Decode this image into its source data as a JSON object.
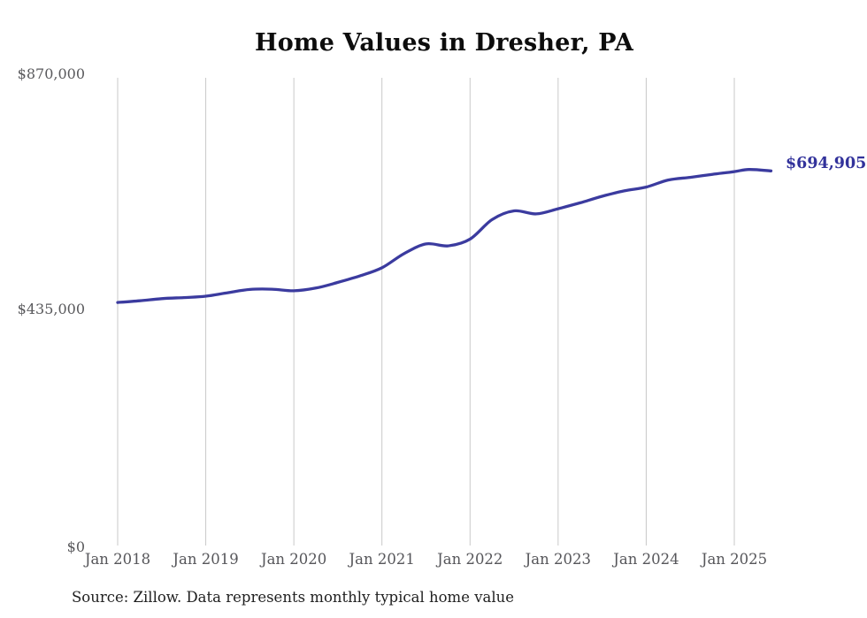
{
  "title": "Home Values in Dresher, PA",
  "y_axis": {
    "labels": [
      "$870,000",
      "$435,000",
      "$0"
    ],
    "values": [
      870000,
      435000,
      0
    ]
  },
  "x_axis": {
    "labels": [
      "Jan 2018",
      "Jan 2019",
      "Jan 2020",
      "Jan 2021",
      "Jan 2022",
      "Jan 2023",
      "Jan 2024",
      "Jan 2025"
    ]
  },
  "end_label": "$694,905",
  "source": "Source: Zillow. Data represents monthly typical home value",
  "colors": {
    "line": "#3b3b9f",
    "grid": "#c9c9c9",
    "axis_text": "#59595c",
    "end_label": "#32329b",
    "title": "#0d0d0d",
    "source_text": "#1f1f1f"
  },
  "chart_data": {
    "type": "line",
    "title": "Home Values in Dresher, PA",
    "series_name": "Typical home value (monthly, Zillow)",
    "x": [
      "2018-01",
      "2018-04",
      "2018-07",
      "2018-10",
      "2019-01",
      "2019-04",
      "2019-07",
      "2019-10",
      "2020-01",
      "2020-04",
      "2020-07",
      "2020-10",
      "2021-01",
      "2021-04",
      "2021-07",
      "2021-10",
      "2022-01",
      "2022-04",
      "2022-07",
      "2022-10",
      "2023-01",
      "2023-04",
      "2023-07",
      "2023-10",
      "2024-01",
      "2024-04",
      "2024-07",
      "2024-10",
      "2025-01",
      "2025-03",
      "2025-06"
    ],
    "values": [
      452000,
      455000,
      459000,
      461000,
      463500,
      470000,
      476000,
      476500,
      473500,
      478500,
      489000,
      501000,
      516000,
      542000,
      560000,
      556500,
      569000,
      605000,
      621000,
      615500,
      625000,
      636000,
      648000,
      658000,
      665000,
      678000,
      683000,
      688500,
      693500,
      697500,
      694905
    ],
    "ylim": [
      0,
      870000
    ],
    "y_ticks": [
      0,
      435000,
      870000
    ],
    "x_ticks_years": [
      2018,
      2019,
      2020,
      2021,
      2022,
      2023,
      2024,
      2025
    ],
    "grid": "vertical-yearly",
    "legend": "none",
    "end_annotation": "$694,905"
  }
}
